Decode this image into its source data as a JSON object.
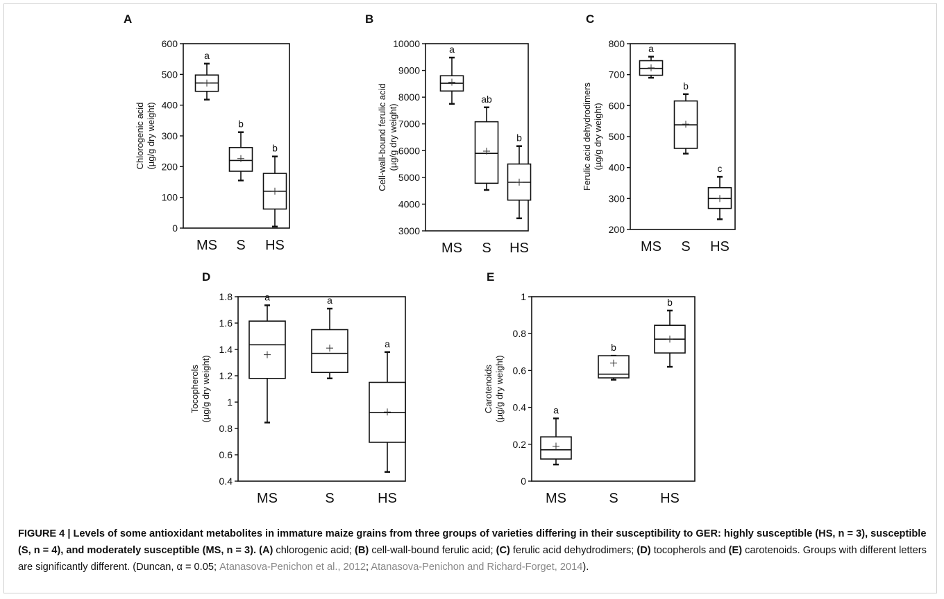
{
  "chart_data": [
    {
      "type": "box",
      "panel": "A",
      "ylabel": [
        "Chlorogenic acid",
        "(µg/g dry weight)"
      ],
      "categories": [
        "MS",
        "S",
        "HS"
      ],
      "ylim": [
        0,
        600
      ],
      "yticks": [
        0,
        100,
        200,
        300,
        400,
        500,
        600
      ],
      "boxes": [
        {
          "min": 418,
          "q1": 445,
          "median": 472,
          "q3": 498,
          "max": 535,
          "mean": 472,
          "letter": "a"
        },
        {
          "min": 155,
          "q1": 185,
          "median": 220,
          "q3": 262,
          "max": 312,
          "mean": 226,
          "letter": "b"
        },
        {
          "min": 5,
          "q1": 62,
          "median": 120,
          "q3": 178,
          "max": 233,
          "mean": 120,
          "letter": "b"
        }
      ]
    },
    {
      "type": "box",
      "panel": "B",
      "ylabel": [
        "Cell-wall-bound ferulic acid",
        "(µg/g dry weight)"
      ],
      "categories": [
        "MS",
        "S",
        "HS"
      ],
      "ylim": [
        3000,
        10000
      ],
      "yticks": [
        3000,
        4000,
        5000,
        6000,
        7000,
        8000,
        9000,
        10000
      ],
      "boxes": [
        {
          "min": 7750,
          "q1": 8230,
          "median": 8520,
          "q3": 8800,
          "max": 9480,
          "mean": 8560,
          "letter": "a"
        },
        {
          "min": 4530,
          "q1": 4780,
          "median": 5900,
          "q3": 7080,
          "max": 7620,
          "mean": 5980,
          "letter": "ab"
        },
        {
          "min": 3470,
          "q1": 4150,
          "median": 4820,
          "q3": 5500,
          "max": 6170,
          "mean": 4820,
          "letter": "b"
        }
      ]
    },
    {
      "type": "box",
      "panel": "C",
      "ylabel": [
        "Ferulic acid dehydrodimers",
        "(µg/g dry weight)"
      ],
      "categories": [
        "MS",
        "S",
        "HS"
      ],
      "ylim": [
        200,
        800
      ],
      "yticks": [
        200,
        300,
        400,
        500,
        600,
        700,
        800
      ],
      "boxes": [
        {
          "min": 690,
          "q1": 698,
          "median": 720,
          "q3": 745,
          "max": 758,
          "mean": 722,
          "letter": "a"
        },
        {
          "min": 445,
          "q1": 462,
          "median": 538,
          "q3": 615,
          "max": 637,
          "mean": 540,
          "letter": "b"
        },
        {
          "min": 233,
          "q1": 268,
          "median": 300,
          "q3": 335,
          "max": 370,
          "mean": 300,
          "letter": "c"
        }
      ]
    },
    {
      "type": "box",
      "panel": "D",
      "ylabel": [
        "Tocopherols",
        "(µg/g dry weight)"
      ],
      "categories": [
        "MS",
        "S",
        "HS"
      ],
      "ylim": [
        0.4,
        1.8
      ],
      "yticks": [
        0.4,
        0.6,
        0.8,
        1,
        1.2,
        1.4,
        1.6,
        1.8
      ],
      "boxes": [
        {
          "min": 0.845,
          "q1": 1.18,
          "median": 1.435,
          "q3": 1.615,
          "max": 1.735,
          "mean": 1.36,
          "letter": "a"
        },
        {
          "min": 1.18,
          "q1": 1.225,
          "median": 1.37,
          "q3": 1.55,
          "max": 1.71,
          "mean": 1.41,
          "letter": "a"
        },
        {
          "min": 0.47,
          "q1": 0.695,
          "median": 0.92,
          "q3": 1.15,
          "max": 1.38,
          "mean": 0.925,
          "letter": "a"
        }
      ]
    },
    {
      "type": "box",
      "panel": "E",
      "ylabel": [
        "Carotenoids",
        "(µg/g dry weight)"
      ],
      "categories": [
        "MS",
        "S",
        "HS"
      ],
      "ylim": [
        0,
        1
      ],
      "yticks": [
        0,
        0.2,
        0.4,
        0.6,
        0.8,
        1
      ],
      "boxes": [
        {
          "min": 0.09,
          "q1": 0.12,
          "median": 0.17,
          "q3": 0.24,
          "max": 0.34,
          "mean": 0.19,
          "letter": "a"
        },
        {
          "min": 0.55,
          "q1": 0.56,
          "median": 0.58,
          "q3": 0.68,
          "max": 0.68,
          "mean": 0.64,
          "letter": "b"
        },
        {
          "min": 0.62,
          "q1": 0.695,
          "median": 0.77,
          "q3": 0.845,
          "max": 0.925,
          "mean": 0.77,
          "letter": "b"
        }
      ]
    }
  ],
  "caption": {
    "parts": [
      "FIGURE 4 | Levels of some antioxidant metabolites in immature maize grains from three groups of varieties differing in their susceptibility to GER: highly susceptible (HS, n = 3), susceptible (S, n = 4), and moderately susceptible (MS, n = 3).",
      " (A)",
      " chlorogenic acid; ",
      "(B)",
      " cell-wall-bound ferulic acid; ",
      "(C)",
      " ferulic acid dehydrodimers; ",
      "(D)",
      " tocopherols and ",
      "(E)",
      " carotenoids. Groups with different letters are significantly different. (Duncan, α = 0.05; ",
      "Atanasova-Penichon et al., 2012",
      "; ",
      "Atanasova-Penichon and Richard-Forget, 2014",
      ")."
    ]
  }
}
